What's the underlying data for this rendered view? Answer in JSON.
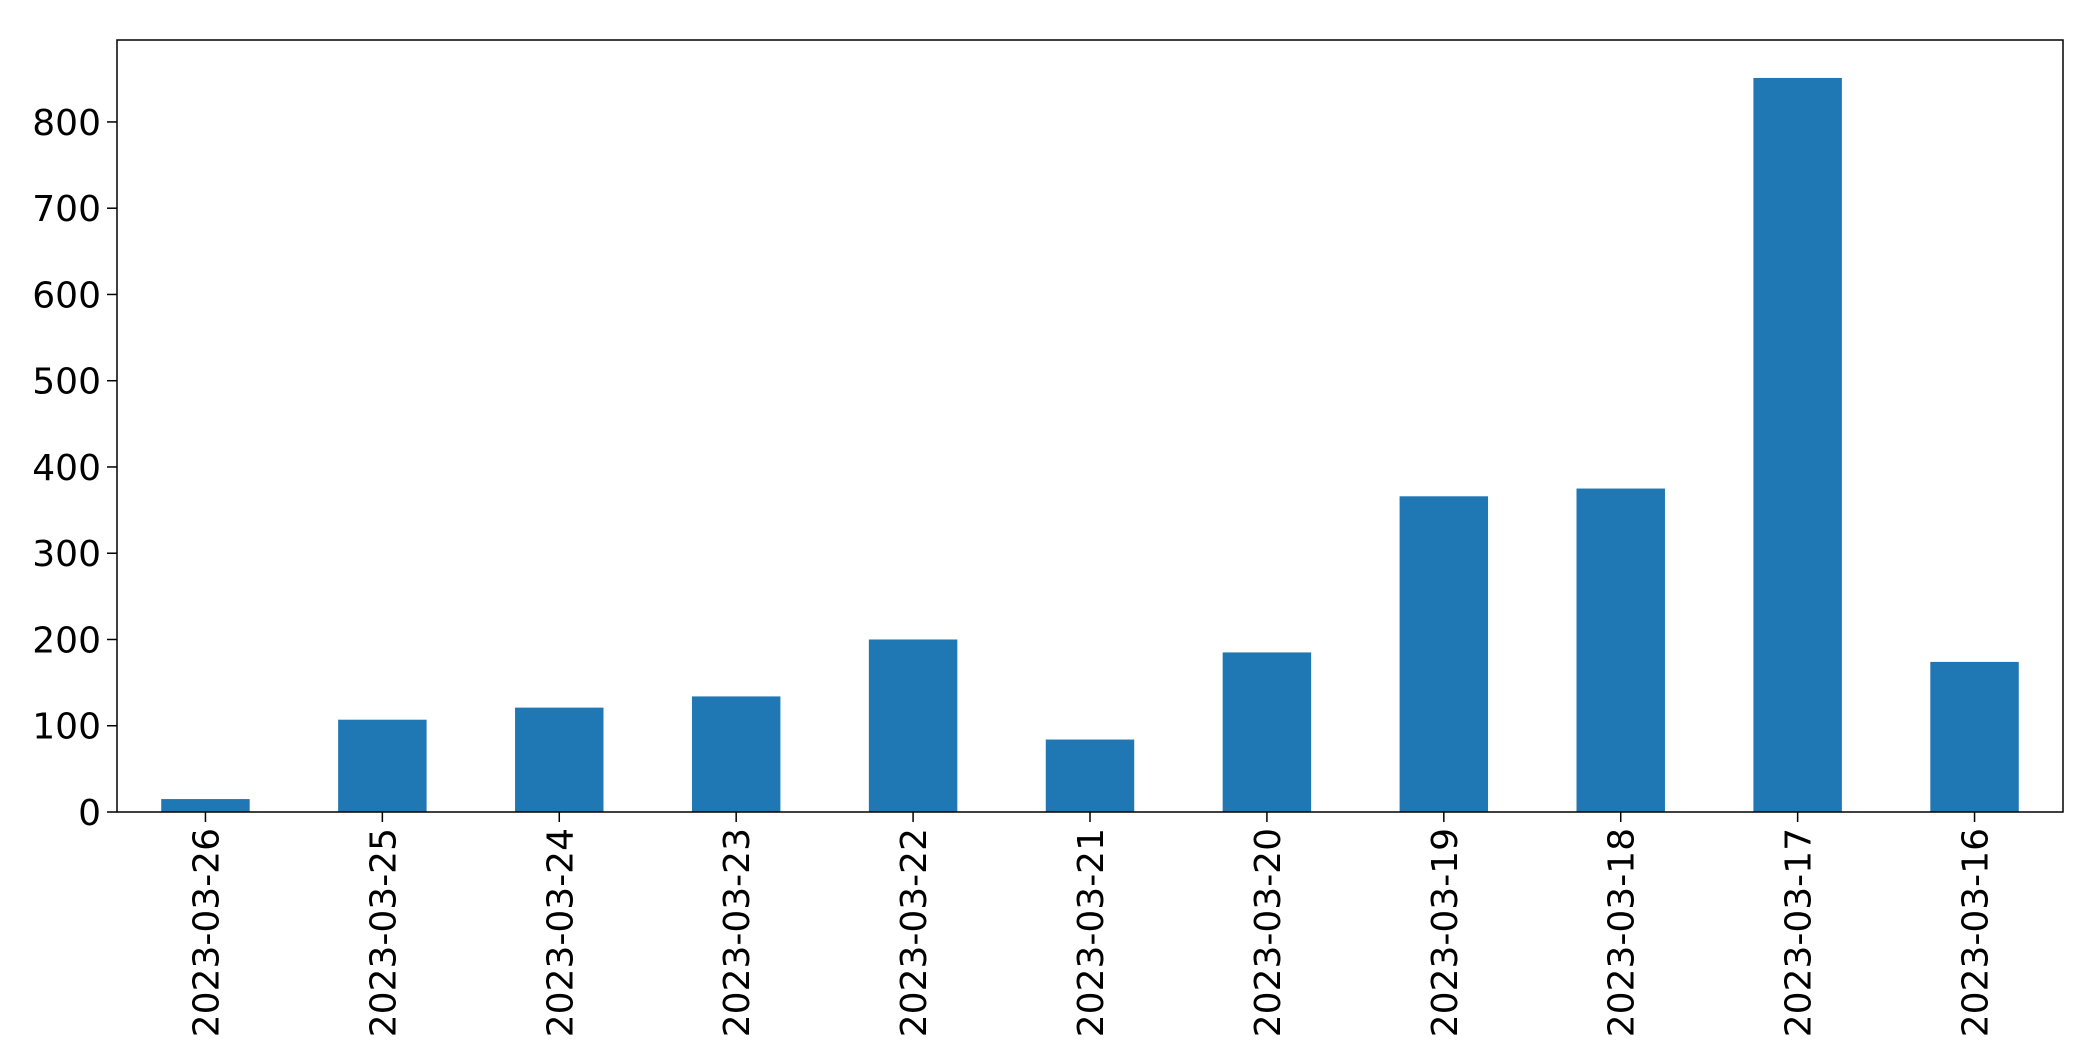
{
  "chart_data": {
    "type": "bar",
    "categories": [
      "2023-03-26",
      "2023-03-25",
      "2023-03-24",
      "2023-03-23",
      "2023-03-22",
      "2023-03-21",
      "2023-03-20",
      "2023-03-19",
      "2023-03-18",
      "2023-03-17",
      "2023-03-16"
    ],
    "values": [
      15,
      107,
      121,
      134,
      200,
      84,
      185,
      366,
      375,
      851,
      174
    ],
    "title": "",
    "xlabel": "",
    "ylabel": "",
    "ylim": [
      0,
      895
    ],
    "yticks": [
      "0",
      "100",
      "200",
      "300",
      "400",
      "500",
      "600",
      "700",
      "800"
    ],
    "bar_color": "#1f77b4",
    "grid": false
  }
}
